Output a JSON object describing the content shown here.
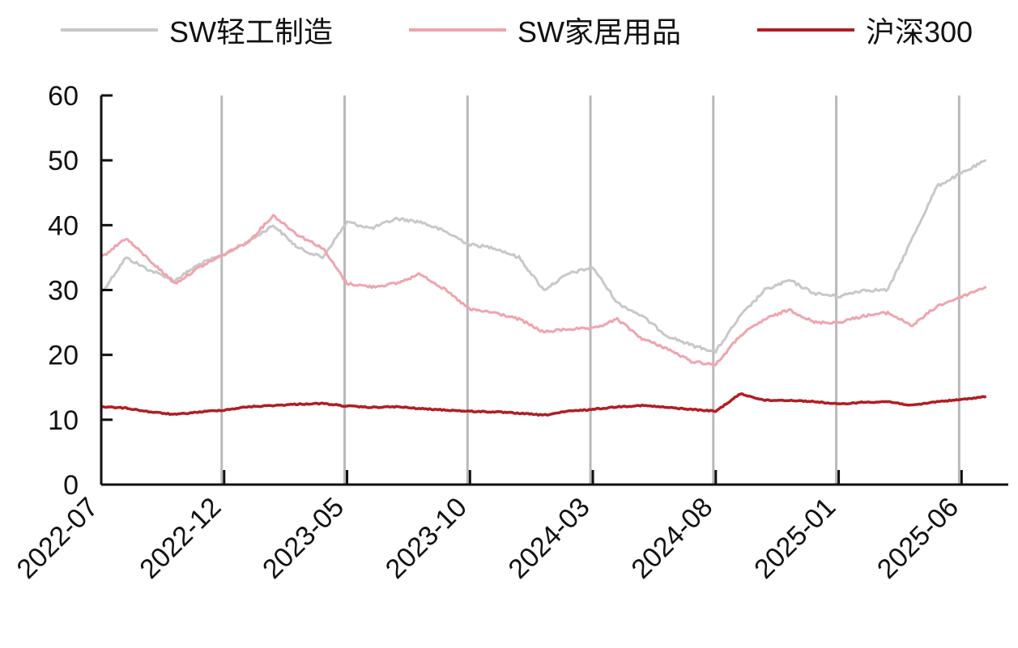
{
  "chart_data": {
    "type": "line",
    "title": "",
    "xlabel": "",
    "ylabel": "",
    "ylim": [
      0,
      60
    ],
    "yticks": [
      0,
      10,
      20,
      30,
      40,
      50,
      60
    ],
    "x_tick_labels": [
      "2022-07",
      "2022-12",
      "2023-05",
      "2023-10",
      "2024-03",
      "2024-08",
      "2025-01",
      "2025-06"
    ],
    "grid": "vertical lines at each x tick",
    "legend": "top",
    "series": [
      {
        "name": "SW轻工制造",
        "color": "#c8c8c8",
        "points": [
          [
            "2022-07",
            29.5
          ],
          [
            "2022-08",
            35
          ],
          [
            "2022-09",
            33
          ],
          [
            "2022-10",
            31.5
          ],
          [
            "2022-11",
            34
          ],
          [
            "2022-12",
            35.5
          ],
          [
            "2023-01",
            37.5
          ],
          [
            "2023-02",
            40
          ],
          [
            "2023-03",
            36.5
          ],
          [
            "2023-04",
            35
          ],
          [
            "2023-05",
            40.5
          ],
          [
            "2023-06",
            39.5
          ],
          [
            "2023-07",
            41
          ],
          [
            "2023-08",
            40.5
          ],
          [
            "2023-09",
            39
          ],
          [
            "2023-10",
            37
          ],
          [
            "2023-11",
            36.5
          ],
          [
            "2023-12",
            35
          ],
          [
            "2024-01",
            30
          ],
          [
            "2024-02",
            32.5
          ],
          [
            "2024-03",
            33.5
          ],
          [
            "2024-04",
            28
          ],
          [
            "2024-05",
            26
          ],
          [
            "2024-06",
            23
          ],
          [
            "2024-07",
            21.5
          ],
          [
            "2024-08",
            20.5
          ],
          [
            "2024-09",
            26
          ],
          [
            "2024-10",
            30
          ],
          [
            "2024-11",
            31.5
          ],
          [
            "2024-12",
            29.5
          ],
          [
            "2025-01",
            29
          ],
          [
            "2025-02",
            30
          ],
          [
            "2025-03",
            30
          ],
          [
            "2025-04",
            38
          ],
          [
            "2025-05",
            46
          ],
          [
            "2025-06",
            48
          ],
          [
            "2025-07",
            50
          ]
        ]
      },
      {
        "name": "SW家居用品",
        "color": "#f0a4ae",
        "points": [
          [
            "2022-07",
            35
          ],
          [
            "2022-08",
            38
          ],
          [
            "2022-09",
            34.5
          ],
          [
            "2022-10",
            31
          ],
          [
            "2022-11",
            33.5
          ],
          [
            "2022-12",
            35.5
          ],
          [
            "2023-01",
            37.5
          ],
          [
            "2023-02",
            41.5
          ],
          [
            "2023-03",
            38.5
          ],
          [
            "2023-04",
            36.5
          ],
          [
            "2023-05",
            31
          ],
          [
            "2023-06",
            30.5
          ],
          [
            "2023-07",
            31
          ],
          [
            "2023-08",
            32.5
          ],
          [
            "2023-09",
            30
          ],
          [
            "2023-10",
            27
          ],
          [
            "2023-11",
            26.5
          ],
          [
            "2023-12",
            25.5
          ],
          [
            "2024-01",
            23.5
          ],
          [
            "2024-02",
            24
          ],
          [
            "2024-03",
            24
          ],
          [
            "2024-04",
            25.5
          ],
          [
            "2024-05",
            22.5
          ],
          [
            "2024-06",
            21
          ],
          [
            "2024-07",
            19
          ],
          [
            "2024-08",
            18.5
          ],
          [
            "2024-09",
            23
          ],
          [
            "2024-10",
            25.5
          ],
          [
            "2024-11",
            27
          ],
          [
            "2024-12",
            25
          ],
          [
            "2025-01",
            25
          ],
          [
            "2025-02",
            26
          ],
          [
            "2025-03",
            26.5
          ],
          [
            "2025-04",
            24.5
          ],
          [
            "2025-05",
            27.5
          ],
          [
            "2025-06",
            29
          ],
          [
            "2025-07",
            30.5
          ]
        ]
      },
      {
        "name": "沪深300",
        "color": "#b01e24",
        "points": [
          [
            "2022-07",
            12
          ],
          [
            "2022-08",
            11.8
          ],
          [
            "2022-09",
            11.2
          ],
          [
            "2022-10",
            10.8
          ],
          [
            "2022-11",
            11.2
          ],
          [
            "2022-12",
            11.5
          ],
          [
            "2023-01",
            12
          ],
          [
            "2023-02",
            12.2
          ],
          [
            "2023-03",
            12.4
          ],
          [
            "2023-04",
            12.5
          ],
          [
            "2023-05",
            12.1
          ],
          [
            "2023-06",
            11.9
          ],
          [
            "2023-07",
            12
          ],
          [
            "2023-08",
            11.7
          ],
          [
            "2023-09",
            11.5
          ],
          [
            "2023-10",
            11.3
          ],
          [
            "2023-11",
            11.2
          ],
          [
            "2023-12",
            11
          ],
          [
            "2024-01",
            10.7
          ],
          [
            "2024-02",
            11.3
          ],
          [
            "2024-03",
            11.6
          ],
          [
            "2024-04",
            12
          ],
          [
            "2024-05",
            12.2
          ],
          [
            "2024-06",
            11.9
          ],
          [
            "2024-07",
            11.6
          ],
          [
            "2024-08",
            11.3
          ],
          [
            "2024-09",
            14
          ],
          [
            "2024-10",
            13
          ],
          [
            "2024-11",
            13
          ],
          [
            "2024-12",
            12.8
          ],
          [
            "2025-01",
            12.4
          ],
          [
            "2025-02",
            12.7
          ],
          [
            "2025-03",
            12.8
          ],
          [
            "2025-04",
            12.2
          ],
          [
            "2025-05",
            12.8
          ],
          [
            "2025-06",
            13.1
          ],
          [
            "2025-07",
            13.6
          ]
        ]
      }
    ]
  }
}
